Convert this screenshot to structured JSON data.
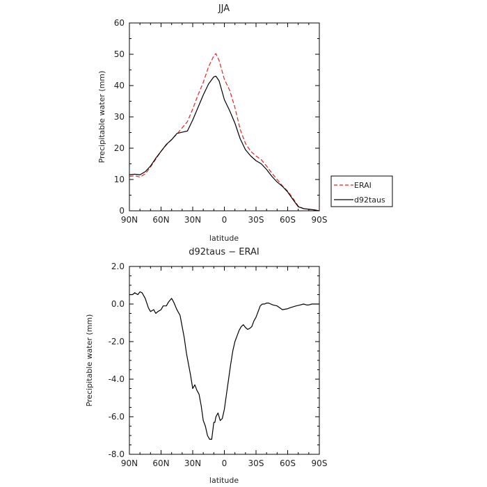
{
  "chart_data": [
    {
      "type": "line",
      "title": "JJA",
      "xlabel": "latitude",
      "ylabel": "Precipitable water (mm)",
      "xlim": [
        90,
        -90
      ],
      "ylim": [
        0,
        60
      ],
      "x_ticks": [
        {
          "value": 90,
          "label": "90N"
        },
        {
          "value": 60,
          "label": "60N"
        },
        {
          "value": 30,
          "label": "30N"
        },
        {
          "value": 0,
          "label": "0"
        },
        {
          "value": -30,
          "label": "30S"
        },
        {
          "value": -60,
          "label": "60S"
        },
        {
          "value": -90,
          "label": "90S"
        }
      ],
      "y_ticks": [
        {
          "value": 0,
          "label": "0"
        },
        {
          "value": 10,
          "label": "10"
        },
        {
          "value": 20,
          "label": "20"
        },
        {
          "value": 30,
          "label": "30"
        },
        {
          "value": 40,
          "label": "40"
        },
        {
          "value": 50,
          "label": "50"
        },
        {
          "value": 60,
          "label": "60"
        }
      ],
      "legend": {
        "placement": "right",
        "entries": [
          "ERAI",
          "d92taus"
        ]
      },
      "series": [
        {
          "name": "ERAI",
          "color": "#e8211d",
          "dash": true,
          "x": [
            90,
            85,
            80,
            75,
            70,
            65,
            60,
            55,
            50,
            45,
            40,
            35,
            30,
            25,
            20,
            15,
            10,
            8,
            5,
            0,
            -5,
            -10,
            -15,
            -20,
            -25,
            -30,
            -35,
            -40,
            -45,
            -50,
            -55,
            -60,
            -65,
            -70,
            -75,
            -80,
            -85,
            -90
          ],
          "y": [
            11,
            11.2,
            10.8,
            11.8,
            14,
            16.5,
            19,
            21,
            22.8,
            24.5,
            26.5,
            28.5,
            32.5,
            37,
            41,
            46,
            49.5,
            50.2,
            48,
            42,
            38.5,
            33,
            26,
            21.5,
            19,
            17.5,
            16.3,
            14.3,
            12,
            10,
            8,
            6.3,
            4,
            1.5,
            0.7,
            0.5,
            0.3,
            0
          ]
        },
        {
          "name": "d92taus",
          "color": "#000000",
          "dash": false,
          "x": [
            90,
            85,
            80,
            75,
            70,
            65,
            60,
            55,
            50,
            45,
            40,
            35,
            30,
            25,
            20,
            15,
            10,
            8,
            5,
            0,
            -5,
            -10,
            -15,
            -20,
            -25,
            -30,
            -35,
            -40,
            -45,
            -50,
            -55,
            -60,
            -65,
            -70,
            -75,
            -80,
            -85,
            -90
          ],
          "y": [
            11.5,
            11.7,
            11.5,
            12.5,
            14.3,
            16.8,
            19,
            21.2,
            22.7,
            24.7,
            25.1,
            25.5,
            29,
            33,
            37,
            40.5,
            42.8,
            43,
            41.5,
            35.5,
            32,
            28,
            23,
            19.5,
            17.5,
            16,
            15,
            13.2,
            11,
            9.2,
            7.8,
            6,
            3.6,
            1.3,
            0.7,
            0.5,
            0.3,
            0
          ]
        }
      ]
    },
    {
      "type": "line",
      "title": "d92taus − ERAI",
      "xlabel": "latitude",
      "ylabel": "Precipitable water (mm)",
      "xlim": [
        90,
        -90
      ],
      "ylim": [
        -8,
        2
      ],
      "x_ticks": [
        {
          "value": 90,
          "label": "90N"
        },
        {
          "value": 60,
          "label": "60N"
        },
        {
          "value": 30,
          "label": "30N"
        },
        {
          "value": 0,
          "label": "0"
        },
        {
          "value": -30,
          "label": "30S"
        },
        {
          "value": -60,
          "label": "60S"
        },
        {
          "value": -90,
          "label": "90S"
        }
      ],
      "y_ticks": [
        {
          "value": 2,
          "label": "2.0"
        },
        {
          "value": 0,
          "label": "0.0"
        },
        {
          "value": -2,
          "label": "-2.0"
        },
        {
          "value": -4,
          "label": "-4.0"
        },
        {
          "value": -6,
          "label": "-6.0"
        },
        {
          "value": -8,
          "label": "-8.0"
        }
      ],
      "series": [
        {
          "color": "#000000",
          "x": [
            90,
            87,
            85,
            82,
            80,
            78,
            75,
            72,
            70,
            67,
            65,
            63,
            60,
            58,
            55,
            53,
            50,
            48,
            45,
            42,
            40,
            38,
            36,
            34,
            32,
            30,
            28,
            26,
            24,
            22,
            20,
            18,
            16,
            14,
            12,
            10,
            9,
            8,
            6,
            4,
            2,
            0,
            -2,
            -4,
            -6,
            -8,
            -10,
            -12,
            -14,
            -16,
            -18,
            -20,
            -22,
            -24,
            -26,
            -28,
            -30,
            -32,
            -34,
            -36,
            -38,
            -40,
            -42,
            -44,
            -46,
            -50,
            -55,
            -60,
            -62,
            -65,
            -68,
            -72,
            -75,
            -78,
            -80,
            -83,
            -86,
            -90
          ],
          "y": [
            0.5,
            0.5,
            0.6,
            0.5,
            0.65,
            0.6,
            0.3,
            -0.2,
            -0.4,
            -0.3,
            -0.5,
            -0.4,
            -0.3,
            -0.1,
            -0.1,
            0.1,
            0.3,
            0.1,
            -0.3,
            -0.6,
            -1.2,
            -1.8,
            -2.6,
            -3.2,
            -3.8,
            -4.5,
            -4.3,
            -4.6,
            -4.8,
            -5.4,
            -6.2,
            -6.5,
            -7.0,
            -7.2,
            -7.2,
            -6.3,
            -6.3,
            -6.0,
            -5.8,
            -6.2,
            -6.1,
            -5.6,
            -4.8,
            -4.0,
            -3.2,
            -2.5,
            -2.0,
            -1.7,
            -1.4,
            -1.2,
            -1.1,
            -1.25,
            -1.35,
            -1.3,
            -1.2,
            -0.9,
            -0.7,
            -0.4,
            -0.1,
            0.0,
            0.0,
            0.05,
            0.05,
            0.0,
            -0.05,
            -0.1,
            -0.3,
            -0.25,
            -0.2,
            -0.15,
            -0.1,
            -0.05,
            0.0,
            -0.05,
            -0.05,
            0.0,
            0.0,
            0.0
          ]
        }
      ]
    }
  ]
}
